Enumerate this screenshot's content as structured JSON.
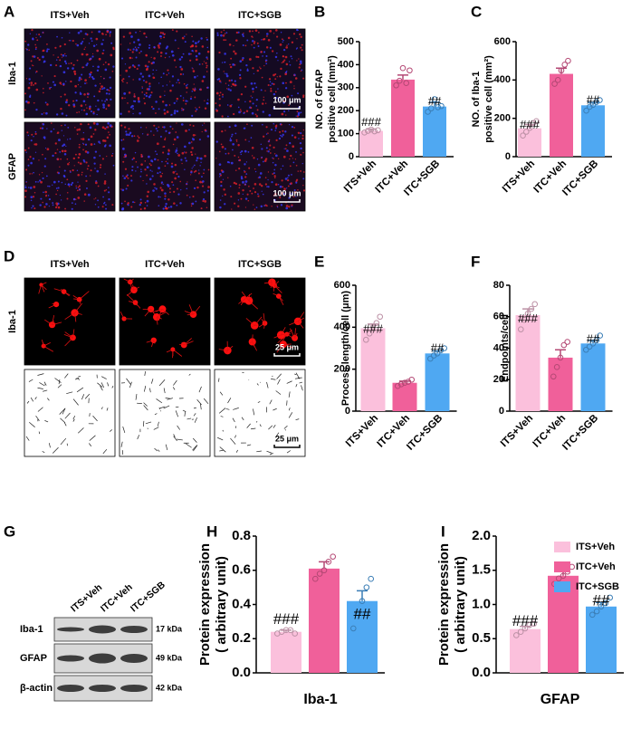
{
  "panel_letters": [
    "A",
    "B",
    "C",
    "D",
    "E",
    "F",
    "G",
    "H",
    "I"
  ],
  "images": {
    "A": {
      "columns": [
        "ITS+Veh",
        "ITC+Veh",
        "ITC+SGB"
      ],
      "rows": [
        "Iba-1",
        "GFAP"
      ],
      "scale_bar": "100 μm"
    },
    "D": {
      "columns": [
        "ITS+Veh",
        "ITC+Veh",
        "ITC+SGB"
      ],
      "rows": [
        "Iba-1"
      ],
      "scale_bar": "25 μm"
    }
  },
  "blot": {
    "lanes": [
      "ITS+Veh",
      "ITC+Veh",
      "ITC+SGB"
    ],
    "proteins": [
      "Iba-1",
      "GFAP",
      "β-actin"
    ],
    "sizes": [
      "17 kDa",
      "49 kDa",
      "42 kDa"
    ]
  },
  "chart_data": [
    {
      "type": "bar",
      "ylabel": [
        "NO. of GFAP",
        "positive cell (mm²)"
      ],
      "categories": [
        "ITS+Veh",
        "ITC+Veh",
        "ITC+SGB"
      ],
      "colors": [
        "#fbc0dc",
        "#f0609a",
        "#4fa8f2"
      ],
      "values": [
        112,
        335,
        218
      ],
      "errors": [
        8,
        20,
        18
      ],
      "points": [
        [
          105,
          112,
          118,
          110,
          115
        ],
        [
          310,
          330,
          385,
          320,
          375
        ],
        [
          195,
          210,
          250,
          215,
          220
        ]
      ],
      "annotations": [
        {
          "category": "ITS+Veh",
          "text": "###"
        },
        {
          "category": "ITC+SGB",
          "text": "##"
        }
      ],
      "ylim": [
        0,
        500
      ],
      "yticks": [
        0,
        100,
        200,
        300,
        400,
        500
      ]
    },
    {
      "type": "bar",
      "ylabel": [
        "NO. of Iba-1",
        "positive cell (mm²)"
      ],
      "categories": [
        "ITS+Veh",
        "ITC+Veh",
        "ITC+SGB"
      ],
      "colors": [
        "#fbc0dc",
        "#f0609a",
        "#4fa8f2"
      ],
      "values": [
        148,
        432,
        268
      ],
      "errors": [
        20,
        30,
        15
      ],
      "points": [
        [
          110,
          130,
          150,
          175,
          185
        ],
        [
          380,
          400,
          450,
          480,
          500
        ],
        [
          240,
          260,
          270,
          285,
          295
        ]
      ],
      "annotations": [
        {
          "category": "ITS+Veh",
          "text": "###"
        },
        {
          "category": "ITC+SGB",
          "text": "##"
        }
      ],
      "ylim": [
        0,
        600
      ],
      "yticks": [
        0,
        200,
        400,
        600
      ]
    },
    {
      "type": "bar",
      "ylabel": [
        "Process length/cell (μm)"
      ],
      "categories": [
        "ITS+Veh",
        "ITC+Veh",
        "ITC+SGB"
      ],
      "colors": [
        "#fbc0dc",
        "#f0609a",
        "#4fa8f2"
      ],
      "values": [
        395,
        135,
        275
      ],
      "errors": [
        20,
        8,
        12
      ],
      "points": [
        [
          340,
          370,
          400,
          420,
          450
        ],
        [
          120,
          128,
          135,
          140,
          150
        ],
        [
          250,
          265,
          275,
          290,
          300
        ]
      ],
      "annotations": [
        {
          "category": "ITS+Veh",
          "text": "###"
        },
        {
          "category": "ITC+SGB",
          "text": "##"
        }
      ],
      "ylim": [
        0,
        600
      ],
      "yticks": [
        0,
        200,
        400,
        600
      ]
    },
    {
      "type": "bar",
      "ylabel": [
        "Endpoints/cell"
      ],
      "categories": [
        "ITS+Veh",
        "ITC+Veh",
        "ITC+SGB"
      ],
      "colors": [
        "#fbc0dc",
        "#f0609a",
        "#4fa8f2"
      ],
      "values": [
        61,
        34,
        43
      ],
      "errors": [
        4,
        5,
        2
      ],
      "points": [
        [
          52,
          58,
          62,
          65,
          68
        ],
        [
          22,
          28,
          34,
          42,
          44
        ],
        [
          39,
          41,
          43,
          45,
          48
        ]
      ],
      "annotations": [
        {
          "category": "ITS+Veh",
          "text": "###"
        },
        {
          "category": "ITC+SGB",
          "text": "##"
        }
      ],
      "ylim": [
        0,
        80
      ],
      "yticks": [
        0,
        20,
        40,
        60,
        80
      ]
    },
    {
      "type": "bar",
      "ylabel": [
        "Protein expression",
        "( arbitrary unit)"
      ],
      "xlabel": "Iba-1",
      "colors": [
        "#fbc0dc",
        "#f0609a",
        "#4fa8f2"
      ],
      "values": [
        0.24,
        0.61,
        0.42
      ],
      "errors": [
        0.01,
        0.04,
        0.06
      ],
      "points": [
        [
          0.23,
          0.24,
          0.25,
          0.25,
          0.23
        ],
        [
          0.55,
          0.58,
          0.6,
          0.65,
          0.68
        ],
        [
          0.26,
          0.35,
          0.42,
          0.5,
          0.55
        ]
      ],
      "annotations": [
        {
          "text": "###",
          "index": 0
        },
        {
          "text": "##",
          "index": 2
        }
      ],
      "ylim": [
        0,
        0.8
      ],
      "yticks": [
        {
          "value": 0,
          "label": "0.0"
        },
        0.2,
        0.4,
        0.6,
        0.8
      ]
    },
    {
      "type": "bar",
      "ylabel": [
        "Protein expression",
        "( arbitrary unit)"
      ],
      "xlabel": "GFAP",
      "categories": [
        "ITS+Veh",
        "ITC+Veh",
        "ITC+SGB"
      ],
      "colors": [
        "#fbc0dc",
        "#f0609a",
        "#4fa8f2"
      ],
      "values": [
        0.64,
        1.42,
        0.97
      ],
      "errors": [
        0.04,
        0.06,
        0.06
      ],
      "points": [
        [
          0.55,
          0.6,
          0.65,
          0.7,
          0.72
        ],
        [
          1.3,
          1.38,
          1.42,
          1.48,
          1.55
        ],
        [
          0.85,
          0.9,
          0.97,
          1.02,
          1.1
        ]
      ],
      "annotations": [
        {
          "text": "###",
          "index": 0
        },
        {
          "text": "##",
          "index": 2
        }
      ],
      "ylim": [
        0,
        2
      ],
      "yticks": [
        {
          "value": 0,
          "label": "0.0"
        },
        0.5,
        {
          "value": 1,
          "label": "1.0"
        },
        1.5,
        {
          "value": 2,
          "label": "2.0"
        }
      ],
      "legend": "upper right"
    }
  ]
}
